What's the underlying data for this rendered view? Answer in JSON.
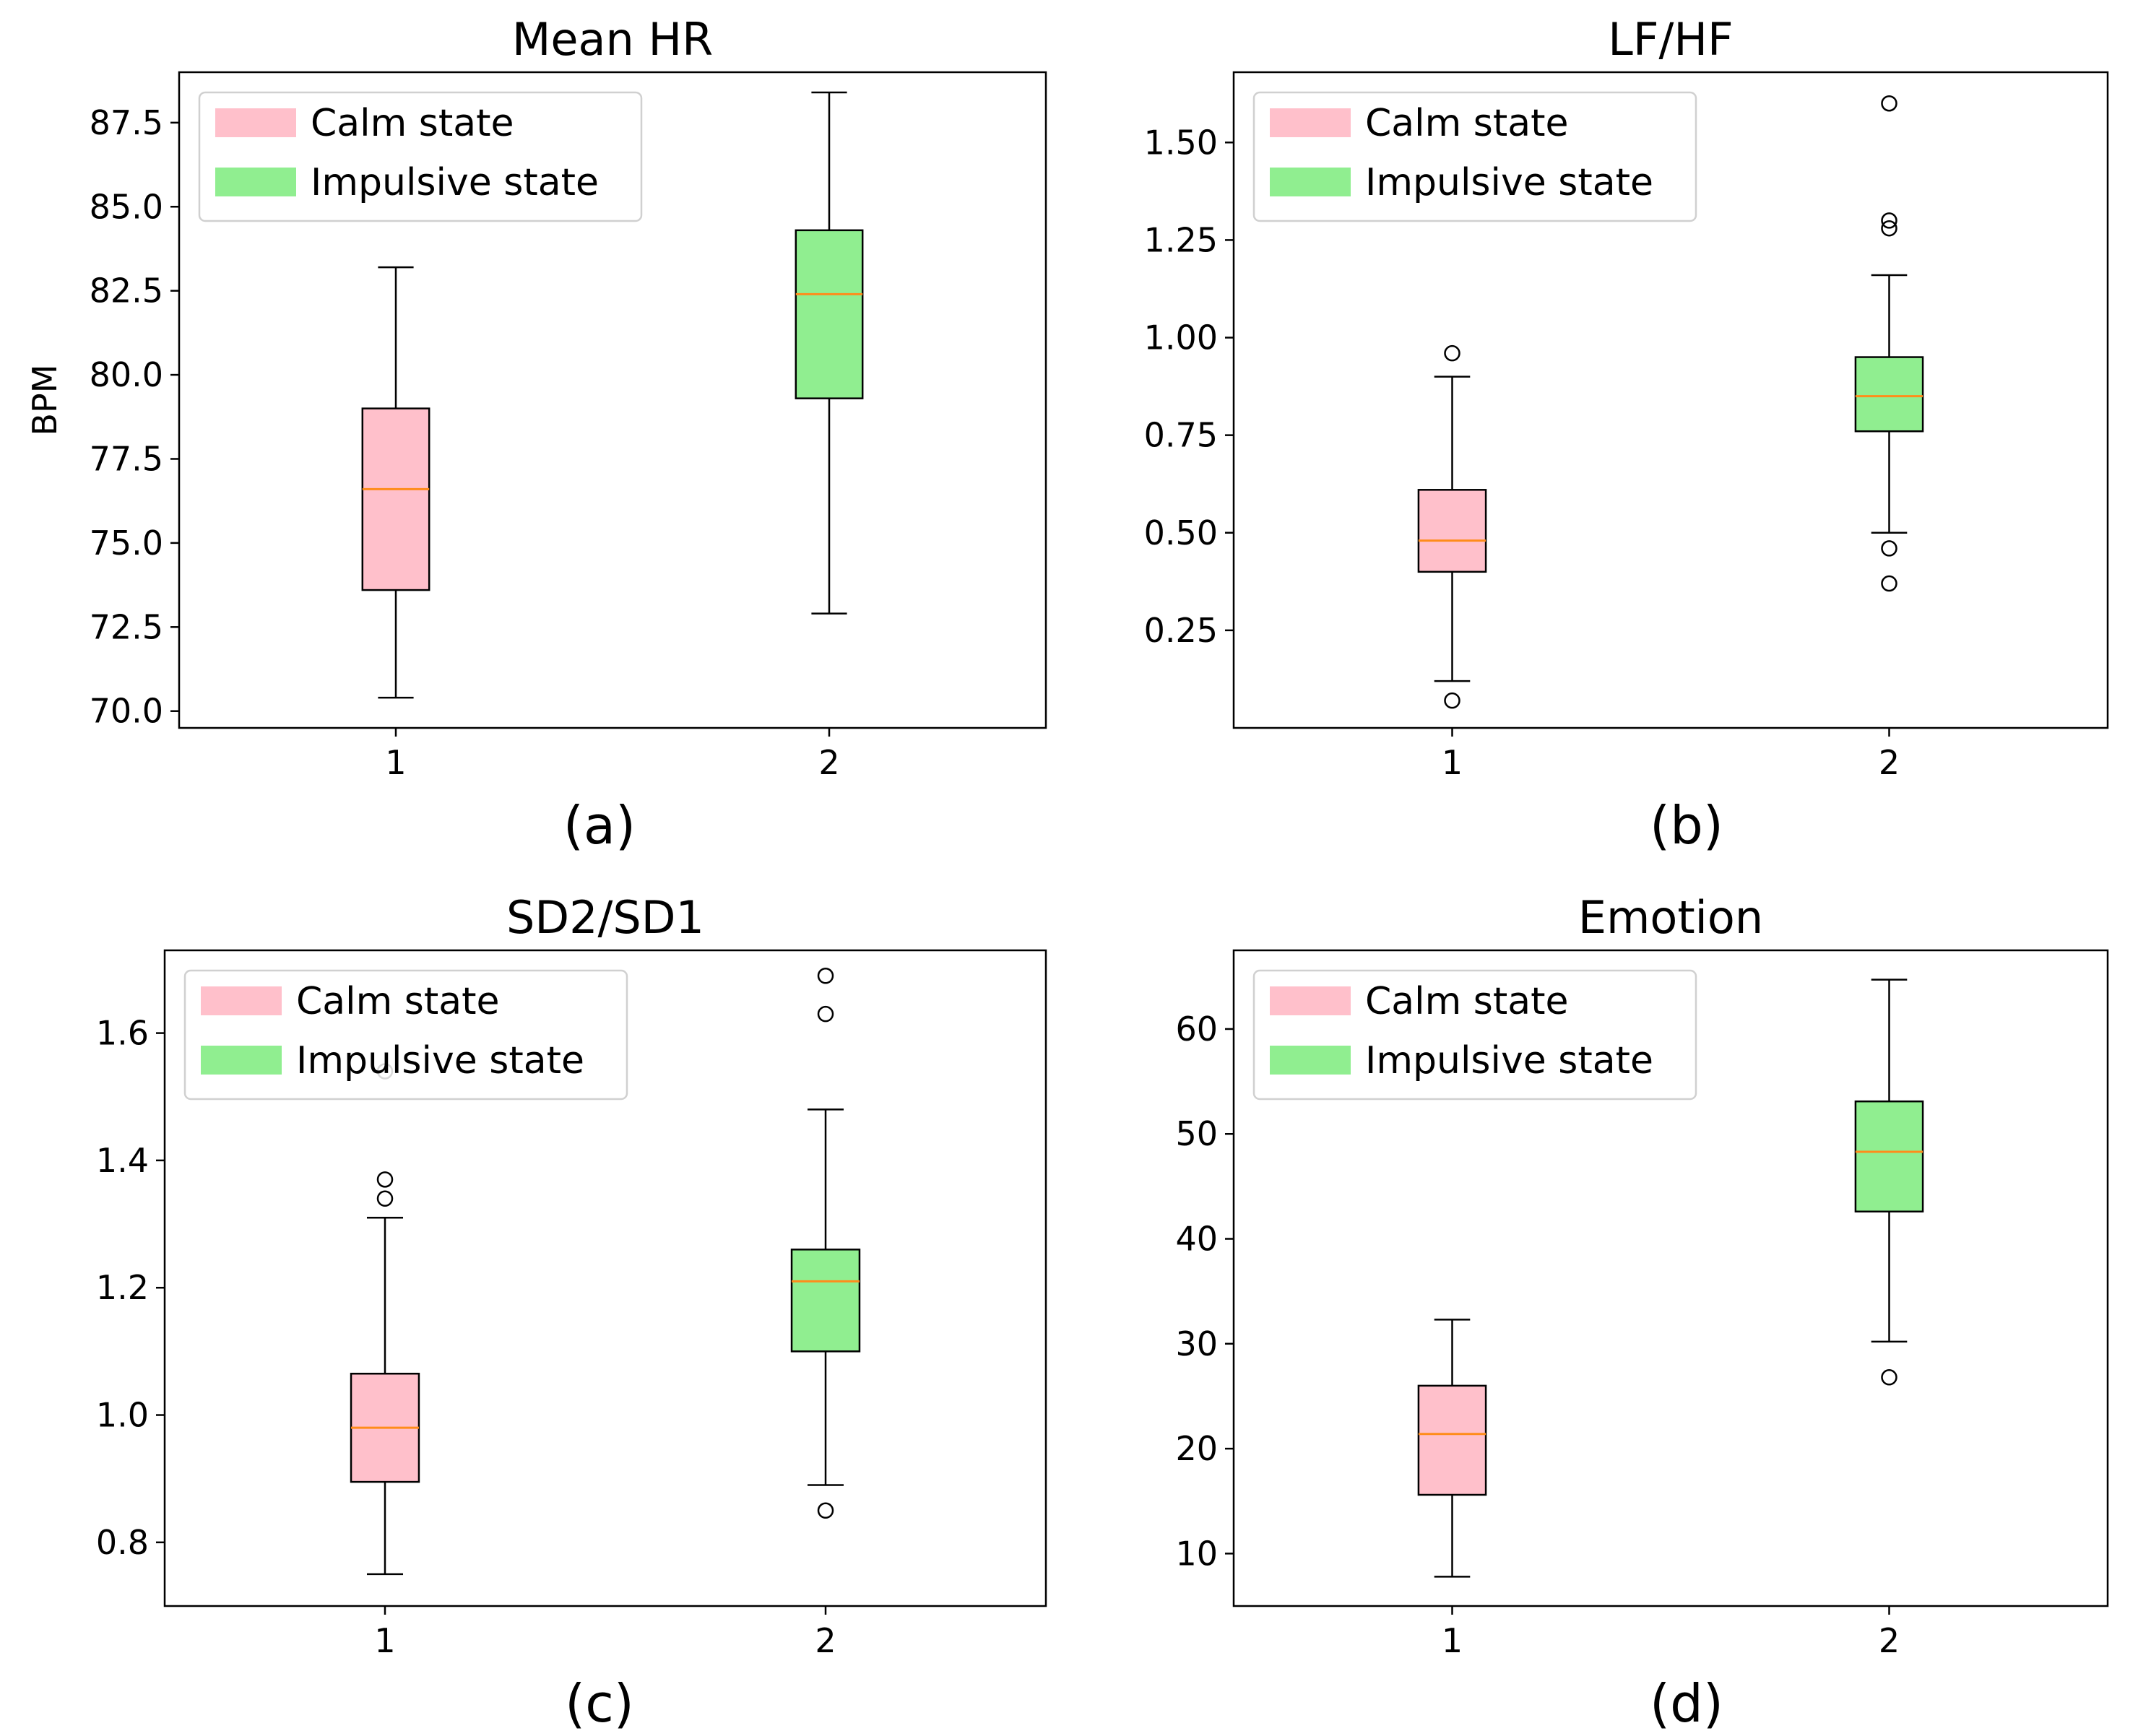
{
  "legend": {
    "entries": [
      {
        "label": "Calm state",
        "color": "#ffc0cb"
      },
      {
        "label": "Impulsive state",
        "color": "#90ee90"
      }
    ]
  },
  "style": {
    "median_color": "#ff8c1a",
    "box_edge_color": "#000000",
    "legend_placement": "top-left",
    "grid": false
  },
  "chart_data": [
    {
      "type": "box",
      "panel_label": "(a)",
      "title": "Mean HR",
      "ylabel": "BPM",
      "xlabel": "",
      "categories": [
        "1",
        "2"
      ],
      "ylim": [
        69.5,
        89.0
      ],
      "yticks": [
        70.0,
        72.5,
        75.0,
        77.5,
        80.0,
        82.5,
        85.0,
        87.5
      ],
      "ytick_labels": [
        "70.0",
        "72.5",
        "75.0",
        "77.5",
        "80.0",
        "82.5",
        "85.0",
        "87.5"
      ],
      "boxes": [
        {
          "series": "Calm state",
          "whisker_low": 70.4,
          "q1": 73.6,
          "median": 76.6,
          "q3": 79.0,
          "whisker_high": 83.2,
          "outliers": []
        },
        {
          "series": "Impulsive state",
          "whisker_low": 72.9,
          "q1": 79.3,
          "median": 82.4,
          "q3": 84.3,
          "whisker_high": 88.4,
          "outliers": []
        }
      ]
    },
    {
      "type": "box",
      "panel_label": "(b)",
      "title": "LF/HF",
      "ylabel": "",
      "xlabel": "",
      "categories": [
        "1",
        "2"
      ],
      "ylim": [
        0.0,
        1.68
      ],
      "yticks": [
        0.25,
        0.5,
        0.75,
        1.0,
        1.25,
        1.5
      ],
      "ytick_labels": [
        "0.25",
        "0.50",
        "0.75",
        "1.00",
        "1.25",
        "1.50"
      ],
      "boxes": [
        {
          "series": "Calm state",
          "whisker_low": 0.12,
          "q1": 0.4,
          "median": 0.48,
          "q3": 0.61,
          "whisker_high": 0.9,
          "outliers": [
            0.96,
            0.07
          ]
        },
        {
          "series": "Impulsive state",
          "whisker_low": 0.5,
          "q1": 0.76,
          "median": 0.85,
          "q3": 0.95,
          "whisker_high": 1.16,
          "outliers": [
            1.6,
            1.3,
            1.28,
            0.46,
            0.37
          ]
        }
      ]
    },
    {
      "type": "box",
      "panel_label": "(c)",
      "title": "SD2/SD1",
      "ylabel": "",
      "xlabel": "",
      "categories": [
        "1",
        "2"
      ],
      "ylim": [
        0.7,
        1.73
      ],
      "yticks": [
        0.8,
        1.0,
        1.2,
        1.4,
        1.6
      ],
      "ytick_labels": [
        "0.8",
        "1.0",
        "1.2",
        "1.4",
        "1.6"
      ],
      "boxes": [
        {
          "series": "Calm state",
          "whisker_low": 0.75,
          "q1": 0.895,
          "median": 0.98,
          "q3": 1.065,
          "whisker_high": 1.31,
          "outliers": [
            1.37,
            1.34,
            1.54
          ]
        },
        {
          "series": "Impulsive state",
          "whisker_low": 0.89,
          "q1": 1.1,
          "median": 1.21,
          "q3": 1.26,
          "whisker_high": 1.48,
          "outliers": [
            1.69,
            1.63,
            0.85
          ]
        }
      ]
    },
    {
      "type": "box",
      "panel_label": "(d)",
      "title": "Emotion",
      "ylabel": "",
      "xlabel": "",
      "categories": [
        "1",
        "2"
      ],
      "ylim": [
        5.0,
        67.5
      ],
      "yticks": [
        10,
        20,
        30,
        40,
        50,
        60
      ],
      "ytick_labels": [
        "10",
        "20",
        "30",
        "40",
        "50",
        "60"
      ],
      "boxes": [
        {
          "series": "Calm state",
          "whisker_low": 7.8,
          "q1": 15.6,
          "median": 21.4,
          "q3": 26.0,
          "whisker_high": 32.3,
          "outliers": []
        },
        {
          "series": "Impulsive state",
          "whisker_low": 30.2,
          "q1": 42.6,
          "median": 48.3,
          "q3": 53.1,
          "whisker_high": 64.7,
          "outliers": [
            26.8
          ]
        }
      ]
    }
  ]
}
